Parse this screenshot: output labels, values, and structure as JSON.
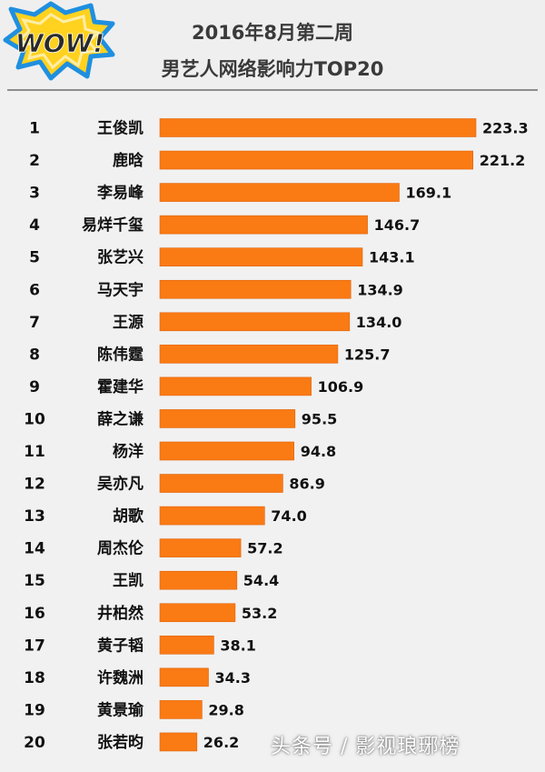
{
  "header": {
    "logo_text": "WOW!",
    "title_line1": "2016年8月第二周",
    "title_line2": "男艺人网络影响力TOP20"
  },
  "watermark": "头条号 / 影视琅琊榜",
  "colors": {
    "bar": "#fa7a14",
    "bar_edge": "#e0650a",
    "logo_yellow": "#ffd21f",
    "logo_blue": "#1f8fe0",
    "logo_text": "#2a2a2a"
  },
  "chart_data": {
    "type": "bar",
    "orientation": "horizontal",
    "title": "2016年8月第二周 男艺人网络影响力TOP20",
    "ranks": [
      "1",
      "2",
      "3",
      "4",
      "5",
      "6",
      "7",
      "8",
      "9",
      "10",
      "11",
      "12",
      "13",
      "14",
      "15",
      "16",
      "17",
      "18",
      "19",
      "20"
    ],
    "categories": [
      "王俊凯",
      "鹿晗",
      "李易峰",
      "易烊千玺",
      "张艺兴",
      "马天宇",
      "王源",
      "陈伟霆",
      "霍建华",
      "薛之谦",
      "杨洋",
      "吴亦凡",
      "胡歌",
      "周杰伦",
      "王凯",
      "井柏然",
      "黄子韬",
      "许魏洲",
      "黄景瑜",
      "张若昀"
    ],
    "values": [
      223.3,
      221.2,
      169.1,
      146.7,
      143.1,
      134.9,
      134.0,
      125.7,
      106.9,
      95.5,
      94.8,
      86.9,
      74.0,
      57.2,
      54.4,
      53.2,
      38.1,
      34.3,
      29.8,
      26.2
    ],
    "value_labels": [
      "223.3",
      "221.2",
      "169.1",
      "146.7",
      "143.1",
      "134.9",
      "134.0",
      "125.7",
      "106.9",
      "95.5",
      "94.8",
      "86.9",
      "74.0",
      "57.2",
      "54.4",
      "53.2",
      "38.1",
      "34.3",
      "29.8",
      "26.2"
    ],
    "xlim": [
      0,
      223.3
    ],
    "grid": false,
    "legend": "none"
  }
}
